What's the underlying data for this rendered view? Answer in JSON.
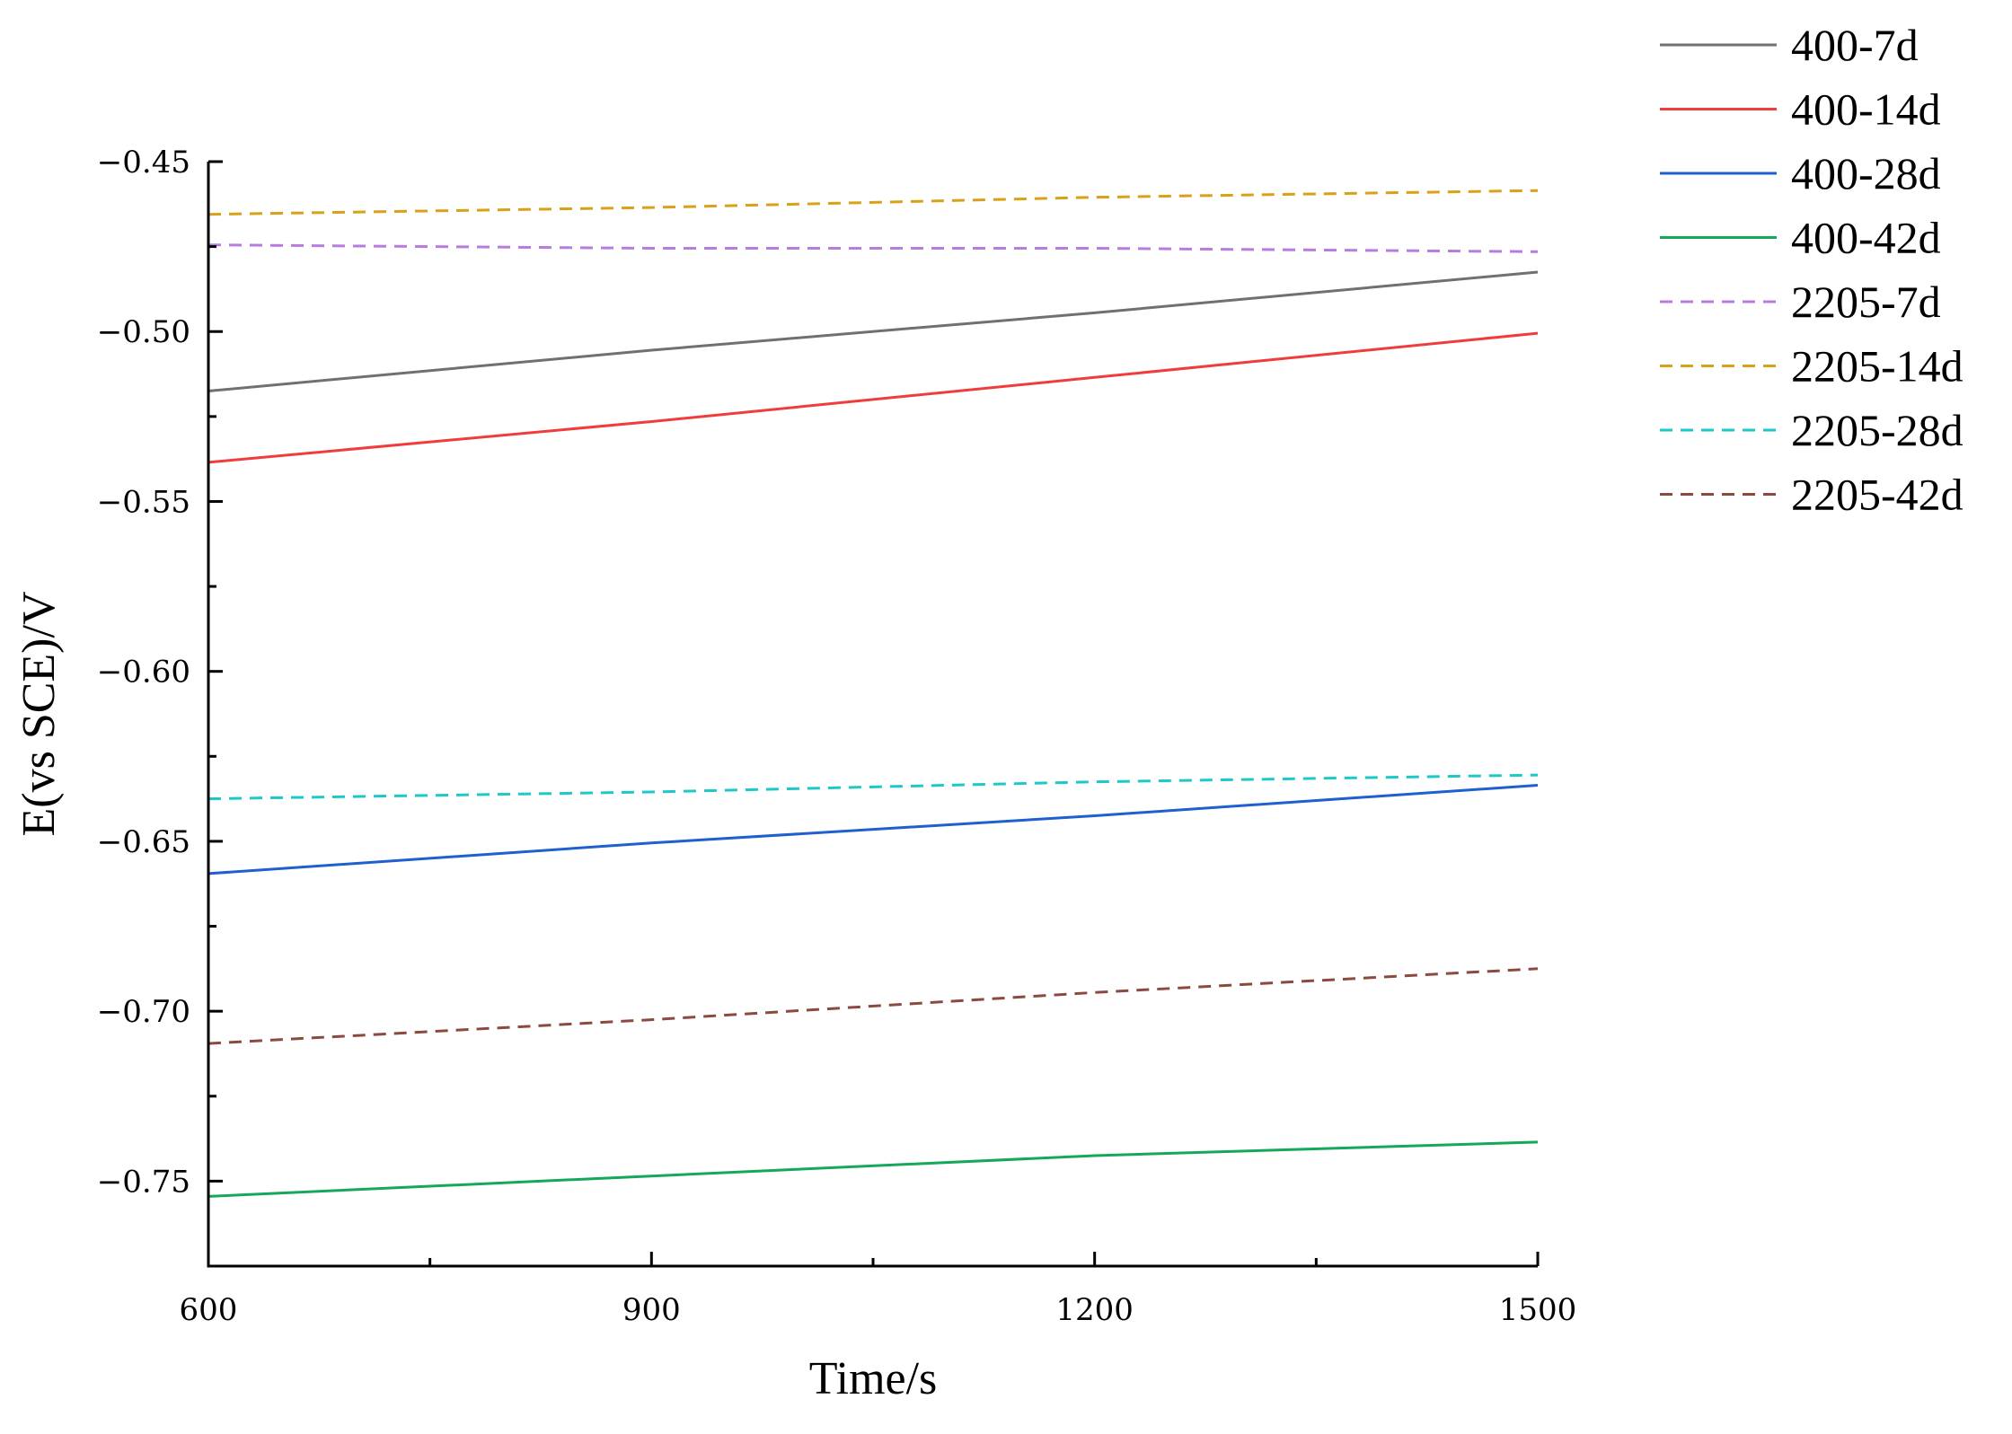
{
  "chart_data": {
    "type": "line",
    "xlabel": "Time/s",
    "ylabel": "E(vs SCE)/V",
    "xlim": [
      600,
      1500
    ],
    "ylim": [
      -0.775,
      -0.45
    ],
    "xticks": [
      600,
      900,
      1200,
      1500
    ],
    "xtick_labels": [
      "600",
      "900",
      "1200",
      "1500"
    ],
    "yticks": [
      -0.45,
      -0.5,
      -0.55,
      -0.6,
      -0.65,
      -0.7,
      -0.75
    ],
    "ytick_labels": [
      "-0.45",
      "-0.50",
      "-0.55",
      "-0.60",
      "-0.65",
      "-0.70",
      "-0.75"
    ],
    "grid": false,
    "legend_position": "top-right outside",
    "series": [
      {
        "name": "400-7d",
        "color": "#707070",
        "dash": "solid",
        "points": [
          [
            600,
            -0.5175
          ],
          [
            900,
            -0.5055
          ],
          [
            1200,
            -0.4945
          ],
          [
            1500,
            -0.4825
          ]
        ]
      },
      {
        "name": "400-14d",
        "color": "#f03c3c",
        "dash": "solid",
        "points": [
          [
            600,
            -0.5385
          ],
          [
            900,
            -0.5265
          ],
          [
            1200,
            -0.5135
          ],
          [
            1500,
            -0.5005
          ]
        ]
      },
      {
        "name": "400-28d",
        "color": "#1f5fd0",
        "dash": "solid",
        "points": [
          [
            600,
            -0.6595
          ],
          [
            900,
            -0.6505
          ],
          [
            1200,
            -0.6425
          ],
          [
            1500,
            -0.6335
          ]
        ]
      },
      {
        "name": "400-42d",
        "color": "#16a85a",
        "dash": "solid",
        "points": [
          [
            600,
            -0.7545
          ],
          [
            900,
            -0.7485
          ],
          [
            1200,
            -0.7425
          ],
          [
            1500,
            -0.7385
          ]
        ]
      },
      {
        "name": "2205-7d",
        "color": "#b87be0",
        "dash": "dashed",
        "points": [
          [
            600,
            -0.4745
          ],
          [
            900,
            -0.4755
          ],
          [
            1200,
            -0.4755
          ],
          [
            1500,
            -0.4765
          ]
        ]
      },
      {
        "name": "2205-14d",
        "color": "#d9a018",
        "dash": "dashed",
        "points": [
          [
            600,
            -0.4655
          ],
          [
            900,
            -0.4635
          ],
          [
            1200,
            -0.4605
          ],
          [
            1500,
            -0.4585
          ]
        ]
      },
      {
        "name": "2205-28d",
        "color": "#1cc8c8",
        "dash": "dashed",
        "points": [
          [
            600,
            -0.6375
          ],
          [
            900,
            -0.6355
          ],
          [
            1200,
            -0.6325
          ],
          [
            1500,
            -0.6305
          ]
        ]
      },
      {
        "name": "2205-42d",
        "color": "#8b4a40",
        "dash": "dashed",
        "points": [
          [
            600,
            -0.7095
          ],
          [
            900,
            -0.7025
          ],
          [
            1200,
            -0.6945
          ],
          [
            1500,
            -0.6875
          ]
        ]
      }
    ]
  }
}
